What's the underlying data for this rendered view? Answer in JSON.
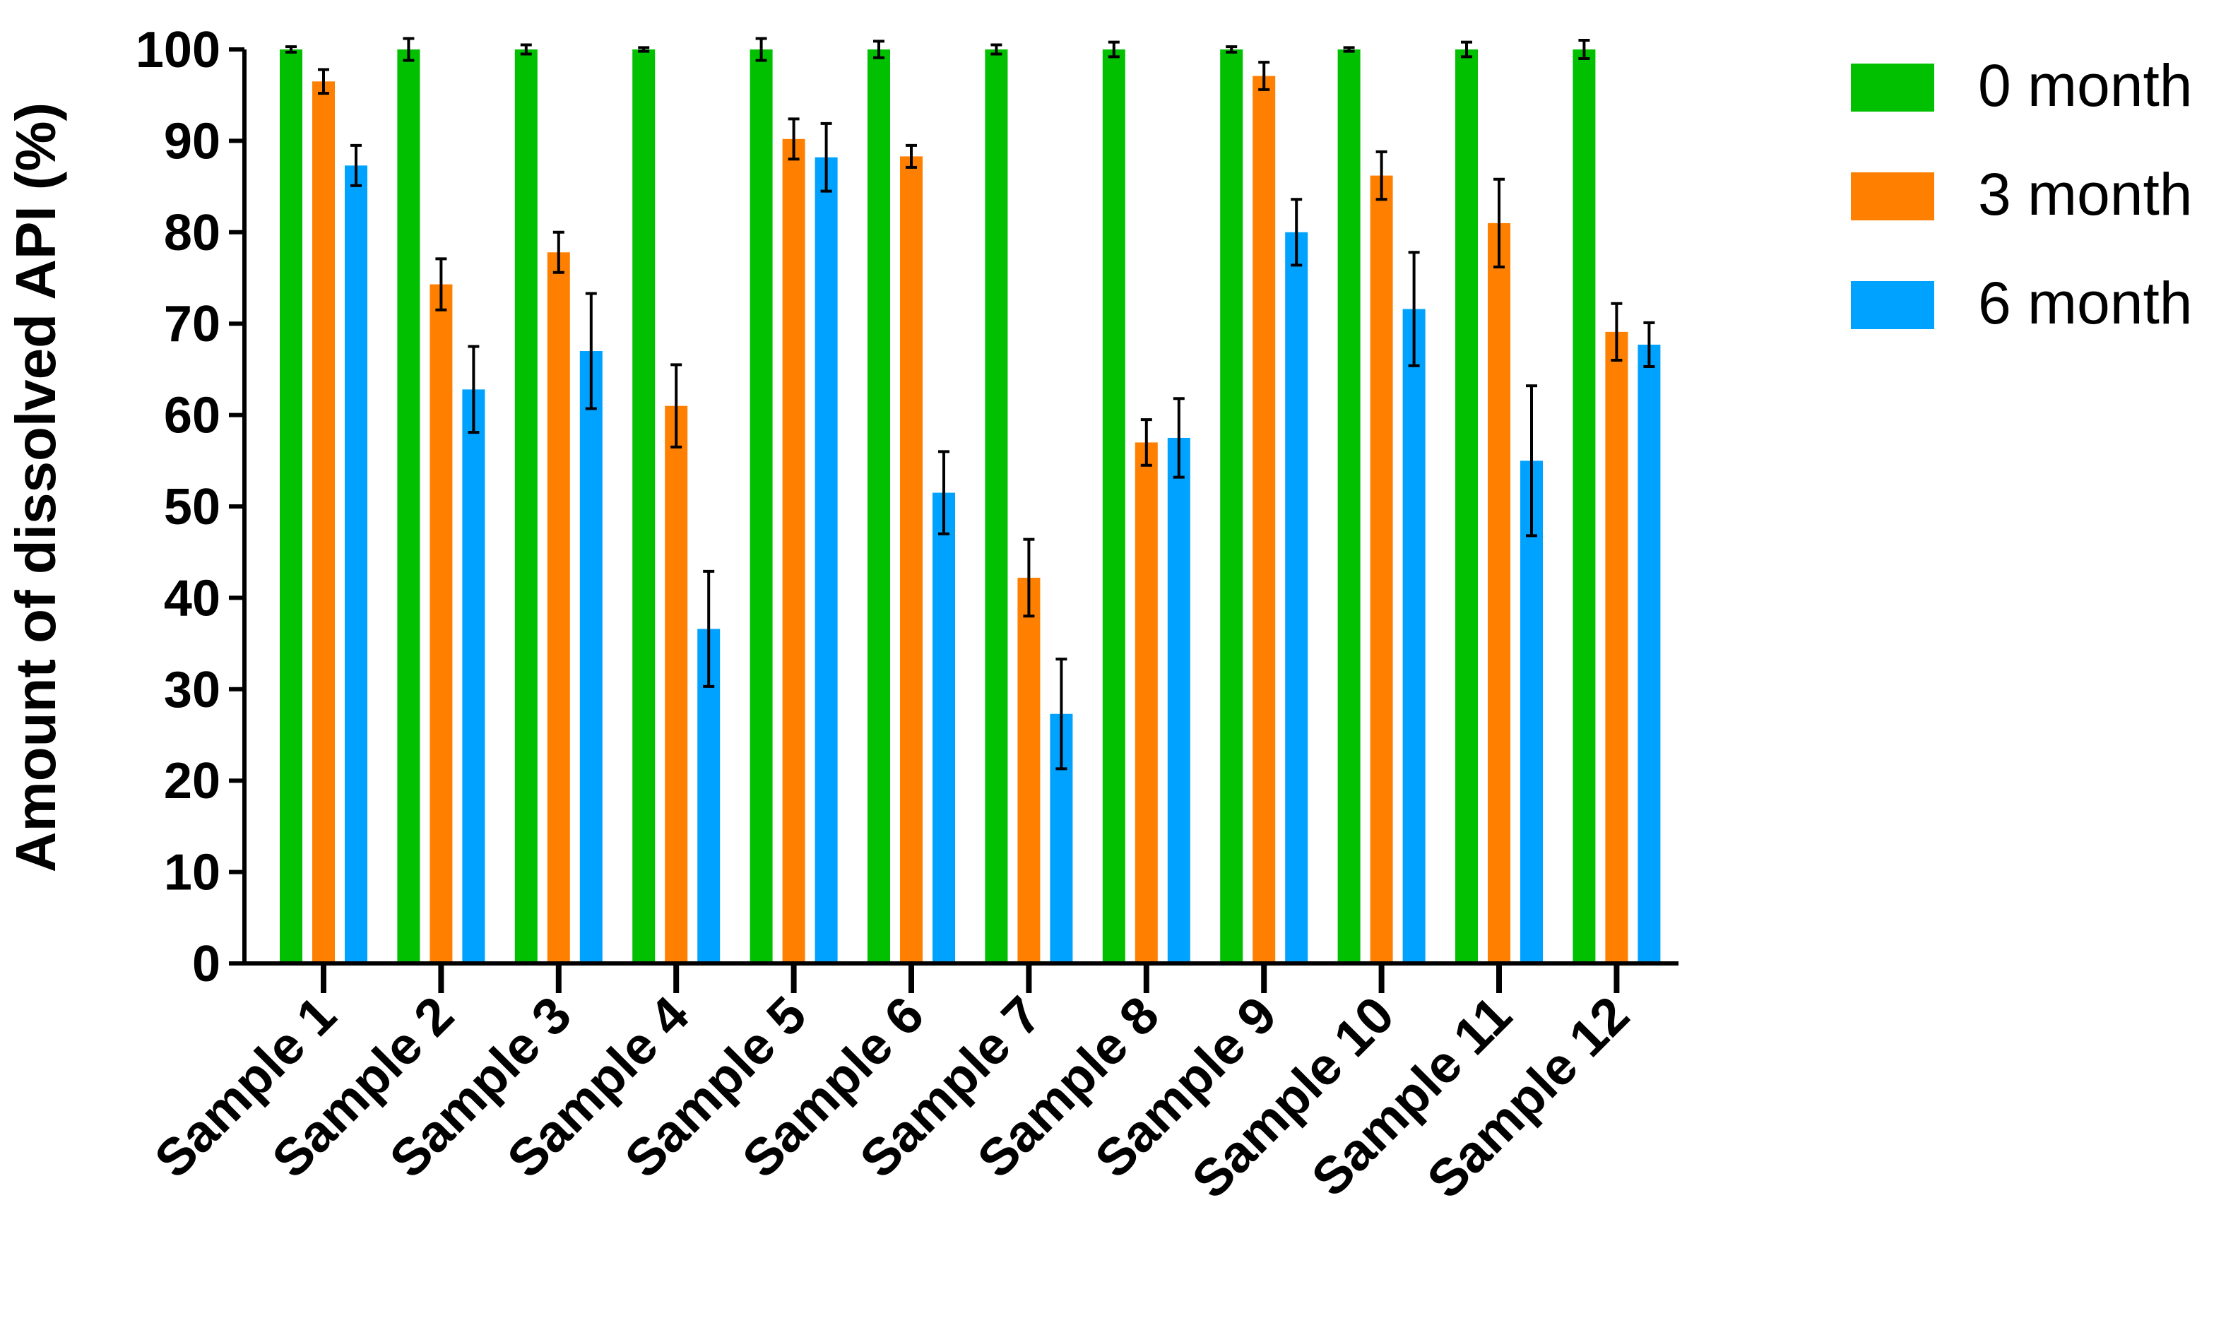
{
  "chart_data": {
    "type": "bar",
    "title": "",
    "xlabel": "",
    "ylabel": "Amount of dissolved API (%)",
    "ylim": [
      0,
      100
    ],
    "yticks": [
      0,
      10,
      20,
      30,
      40,
      50,
      60,
      70,
      80,
      90,
      100
    ],
    "grid": false,
    "legend_position": "top-right",
    "categories": [
      "Sample 1",
      "Sample 2",
      "Sample 3",
      "Sample 4",
      "Sample 5",
      "Sample 6",
      "Sample 7",
      "Sample 8",
      "Sample 9",
      "Sample 10",
      "Sample 11",
      "Sample 12"
    ],
    "series": [
      {
        "name": "0 month",
        "color": "#00c000",
        "values": [
          100,
          100,
          100,
          100,
          100,
          100,
          100,
          100,
          100,
          100,
          100,
          100
        ],
        "errors": [
          0.3,
          1.2,
          0.5,
          0.2,
          1.2,
          0.9,
          0.5,
          0.8,
          0.3,
          0.2,
          0.8,
          1.0
        ]
      },
      {
        "name": "3 month",
        "color": "#ff8000",
        "values": [
          96.5,
          74.3,
          77.8,
          61.0,
          90.2,
          88.3,
          42.2,
          57.0,
          97.1,
          86.2,
          81.0,
          69.1
        ],
        "errors": [
          1.3,
          2.8,
          2.2,
          4.5,
          2.2,
          1.2,
          4.2,
          2.5,
          1.5,
          2.6,
          4.8,
          3.1
        ]
      },
      {
        "name": "6 month",
        "color": "#00a2ff",
        "values": [
          87.3,
          62.8,
          67.0,
          36.6,
          88.2,
          51.5,
          27.3,
          57.5,
          80.0,
          71.6,
          55.0,
          67.7
        ],
        "errors": [
          2.2,
          4.7,
          6.3,
          6.3,
          3.7,
          4.5,
          6.0,
          4.3,
          3.6,
          6.2,
          8.2,
          2.4
        ]
      }
    ]
  }
}
